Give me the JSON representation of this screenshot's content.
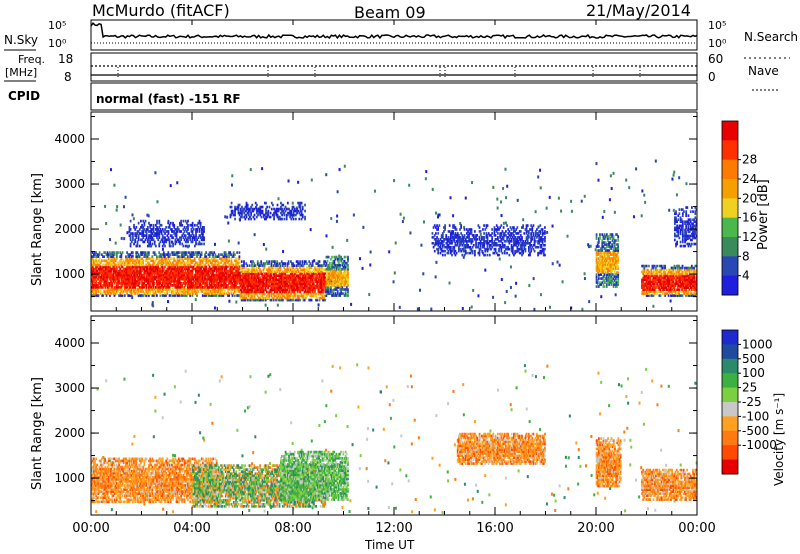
{
  "header": {
    "station": "McMurdo (fitACF)",
    "beam": "Beam 09",
    "date": "21/May/2014"
  },
  "top_panels": {
    "nsky_label": "N.Sky",
    "nsearch_label": "N.Search",
    "noise_ticks": [
      "10^5",
      "10^0"
    ],
    "noise_ticks_right": [
      "10^5",
      "10^0"
    ],
    "freq_label": "Freq.",
    "freq_unit": "[MHz]",
    "freq_ticks": [
      "18",
      "8"
    ],
    "nave_label": "Nave",
    "nave_ticks": [
      "60",
      "0"
    ],
    "cpid_label": "CPID",
    "cpid_text": "normal (fast) -151 RF"
  },
  "colors": {
    "power": [
      "#1e1edc",
      "#2a48b4",
      "#3a8a5a",
      "#4cb84c",
      "#f0d020",
      "#f5a000",
      "#ff7a00",
      "#ff3000",
      "#e60000"
    ],
    "velocity": [
      "#e80000",
      "#ff4a00",
      "#ff7a10",
      "#ffa020",
      "#c8c8c8",
      "#7cd040",
      "#3cb040",
      "#2a8a6a",
      "#204aa0",
      "#1e2ad0"
    ]
  },
  "chart_data": [
    {
      "type": "heatmap",
      "title": "",
      "xlabel": "Time UT",
      "ylabel": "Slant Range [km]",
      "xticks": [
        "00:00",
        "04:00",
        "08:00",
        "12:00",
        "16:00",
        "20:00",
        "00:00"
      ],
      "xlim": [
        0,
        24
      ],
      "yticks": [
        "1000",
        "2000",
        "3000",
        "4000"
      ],
      "ylim": [
        180,
        4600
      ],
      "colorbar": {
        "label": "Power [dB]",
        "ticks": [
          "4",
          "8",
          "12",
          "16",
          "20",
          "24",
          "28"
        ],
        "range": [
          0,
          30
        ]
      },
      "blobs": [
        {
          "t0": 0.0,
          "t1": 5.9,
          "r0": 500,
          "r1": 1500,
          "level": "strong"
        },
        {
          "t0": 5.9,
          "t1": 9.3,
          "r0": 400,
          "r1": 1300,
          "level": "strong"
        },
        {
          "t0": 9.3,
          "t1": 10.2,
          "r0": 500,
          "r1": 1400,
          "level": "medium"
        },
        {
          "t0": 1.5,
          "t1": 4.5,
          "r0": 1600,
          "r1": 2200,
          "level": "weak"
        },
        {
          "t0": 5.5,
          "t1": 8.5,
          "r0": 2200,
          "r1": 2600,
          "level": "weak"
        },
        {
          "t0": 13.5,
          "t1": 18.0,
          "r0": 1400,
          "r1": 2100,
          "level": "weak"
        },
        {
          "t0": 20.0,
          "t1": 20.9,
          "r0": 700,
          "r1": 1900,
          "level": "medium"
        },
        {
          "t0": 21.8,
          "t1": 24.0,
          "r0": 500,
          "r1": 1200,
          "level": "strong"
        },
        {
          "t0": 23.1,
          "t1": 24.0,
          "r0": 1600,
          "r1": 2500,
          "level": "weak"
        }
      ]
    },
    {
      "type": "heatmap",
      "title": "",
      "xlabel": "Time UT",
      "ylabel": "Slant Range [km]",
      "xticks": [
        "00:00",
        "04:00",
        "08:00",
        "12:00",
        "16:00",
        "20:00",
        "00:00"
      ],
      "xlim": [
        0,
        24
      ],
      "yticks": [
        "1000",
        "2000",
        "3000",
        "4000"
      ],
      "ylim": [
        180,
        4600
      ],
      "colorbar": {
        "label": "Velocity [m s^-1]",
        "ticks": [
          "1000",
          "500",
          "100",
          "25",
          "-25",
          "-100",
          "-500",
          "-1000"
        ],
        "range": [
          -1200,
          1200
        ]
      },
      "blobs": [
        {
          "t0": 0.0,
          "t1": 5.0,
          "r0": 450,
          "r1": 1450,
          "level": "negative"
        },
        {
          "t0": 4.0,
          "t1": 9.3,
          "r0": 350,
          "r1": 1300,
          "level": "mixed"
        },
        {
          "t0": 7.5,
          "t1": 10.2,
          "r0": 500,
          "r1": 1600,
          "level": "positive"
        },
        {
          "t0": 14.5,
          "t1": 18.0,
          "r0": 1300,
          "r1": 2000,
          "level": "negative"
        },
        {
          "t0": 20.0,
          "t1": 21.0,
          "r0": 800,
          "r1": 1900,
          "level": "negative"
        },
        {
          "t0": 21.8,
          "t1": 24.0,
          "r0": 500,
          "r1": 1200,
          "level": "negative"
        }
      ]
    }
  ]
}
